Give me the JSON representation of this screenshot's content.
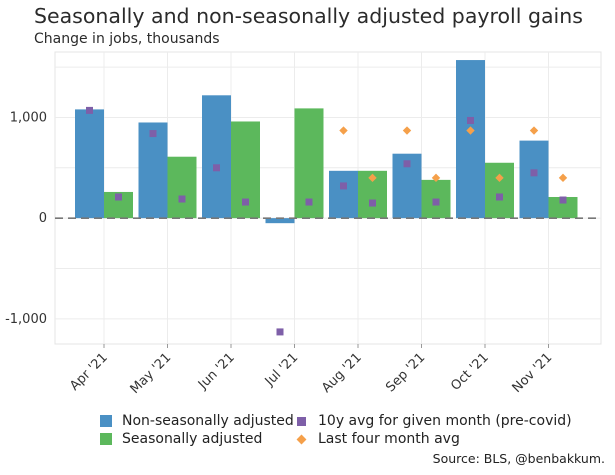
{
  "title": "Seasonally and non-seasonally adjusted payroll gains",
  "subtitle": "Change in jobs, thousands",
  "source": "Source: BLS, @benbakkum.",
  "colors": {
    "nsa": "#4a90c4",
    "sa": "#5cb85c",
    "avg10y": "#7e5fa8",
    "avg4m": "#f5a04a"
  },
  "chart_data": {
    "type": "bar",
    "categories": [
      "Apr '21",
      "May '21",
      "Jun '21",
      "Jul '21",
      "Aug '21",
      "Sep '21",
      "Oct '21",
      "Nov '21"
    ],
    "ylim": [
      -1250,
      1650
    ],
    "yticks": [
      {
        "value": 1000,
        "label": "1,000"
      },
      {
        "value": 0,
        "label": "0"
      },
      {
        "value": -1000,
        "label": "-1,000"
      }
    ],
    "zero_line": "dashed",
    "grid": true,
    "legend_position": "bottom",
    "series": [
      {
        "name": "Non-seasonally adjusted",
        "type": "bar",
        "color": "#4a90c4",
        "values": [
          1080,
          950,
          1220,
          -50,
          470,
          640,
          1570,
          770
        ]
      },
      {
        "name": "Seasonally adjusted",
        "type": "bar",
        "color": "#5cb85c",
        "values": [
          260,
          610,
          960,
          1090,
          470,
          380,
          550,
          210
        ]
      },
      {
        "name": "10y avg for given month (pre-covid)",
        "type": "marker",
        "marker": "square",
        "color": "#7e5fa8",
        "values": [
          1070,
          840,
          500,
          -1130,
          320,
          540,
          970,
          450
        ]
      },
      {
        "name": "Last four month avg",
        "type": "marker",
        "marker": "diamond",
        "color": "#f5a04a",
        "values": [
          null,
          null,
          null,
          null,
          870,
          870,
          870,
          870
        ]
      }
    ],
    "extra_markers": [
      {
        "series": "10y avg for given month (pre-covid)",
        "values": [
          210,
          190,
          160,
          160,
          150,
          160,
          210,
          180
        ],
        "position": "sa"
      },
      {
        "series": "Last four month avg",
        "values": [
          null,
          null,
          null,
          null,
          400,
          400,
          400,
          400
        ],
        "position": "sa"
      }
    ]
  }
}
